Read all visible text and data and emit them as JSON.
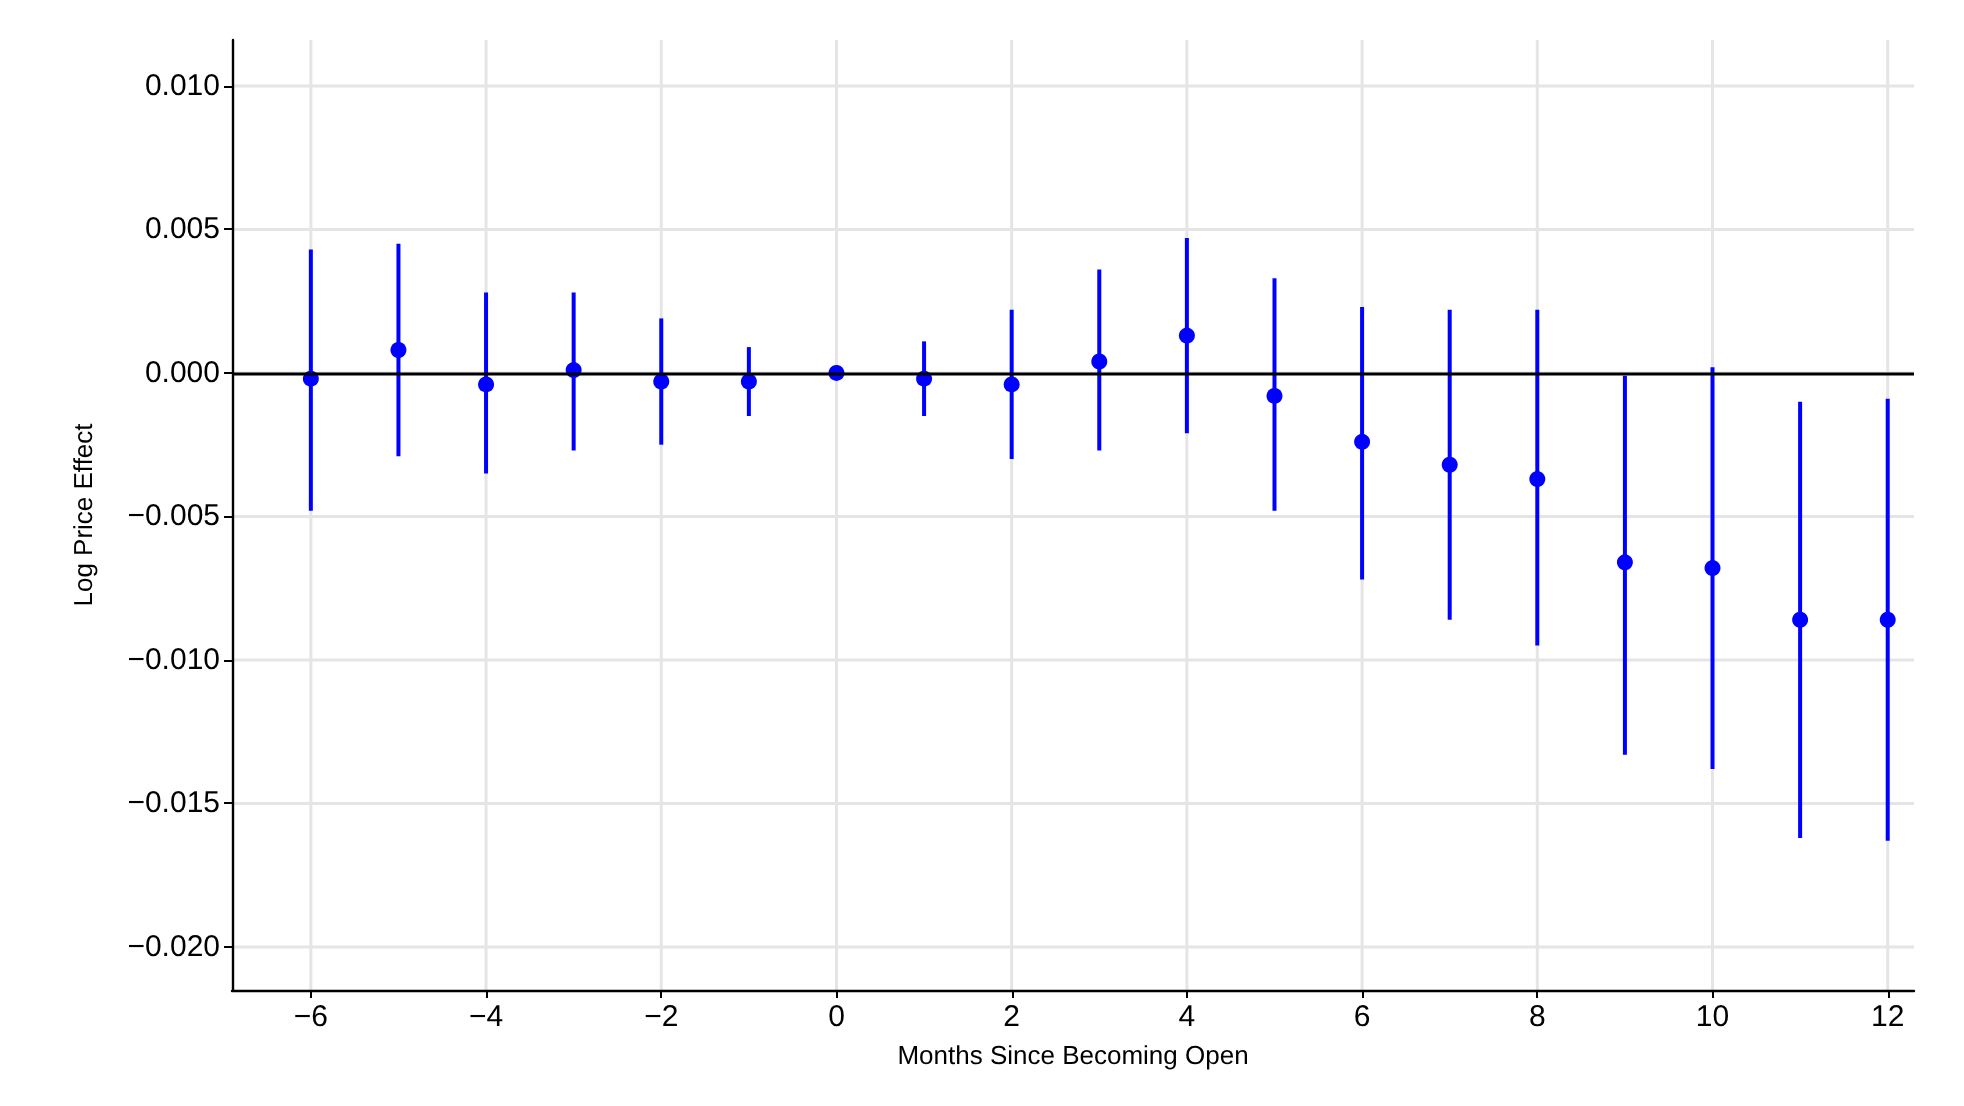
{
  "chart_data": {
    "type": "scatter",
    "xlabel": "Months Since Becoming Open",
    "ylabel": "Log Price Effect",
    "x": [
      -6,
      -5,
      -4,
      -3,
      -2,
      -1,
      0,
      1,
      2,
      3,
      4,
      5,
      6,
      7,
      8,
      9,
      10,
      11,
      12
    ],
    "series": [
      {
        "color": "#0000ff",
        "values": [
          -0.0002,
          0.0008,
          -0.0004,
          0.0001,
          -0.0003,
          -0.0003,
          0,
          -0.0002,
          -0.0004,
          0.0004,
          0.0013,
          -0.0008,
          -0.0024,
          -0.0032,
          -0.0037,
          -0.0066,
          -0.0068,
          -0.0086,
          -0.0086
        ],
        "errors": [
          [
            -0.0048,
            0.0043
          ],
          [
            -0.0029,
            0.0045
          ],
          [
            -0.0035,
            0.0028
          ],
          [
            -0.0027,
            0.0028
          ],
          [
            -0.0025,
            0.0019
          ],
          [
            -0.0015,
            0.0009
          ],
          null,
          [
            -0.0015,
            0.0011
          ],
          [
            -0.003,
            0.0022
          ],
          [
            -0.0027,
            0.0036
          ],
          [
            -0.0021,
            0.0047
          ],
          [
            -0.0048,
            0.0033
          ],
          [
            -0.0072,
            0.0023
          ],
          [
            -0.0086,
            0.0022
          ],
          [
            -0.0095,
            0.0022
          ],
          [
            -0.0133,
            -0.0001
          ],
          [
            -0.0138,
            0.0002
          ],
          [
            -0.0162,
            -0.001
          ],
          [
            -0.0163,
            -0.0009
          ]
        ]
      }
    ],
    "xlim": [
      -6.9,
      12.3
    ],
    "xticks": [
      {
        "value": -6,
        "label": "−6"
      },
      {
        "value": -4,
        "label": "−4"
      },
      {
        "value": -2,
        "label": "−2"
      },
      0,
      2,
      4,
      6,
      8,
      10,
      12
    ],
    "ylim": [
      -0.0215,
      0.0116
    ],
    "yticks": [
      {
        "value": -0.02,
        "label": "−0.020"
      },
      {
        "value": -0.015,
        "label": "−0.015"
      },
      {
        "value": -0.01,
        "label": "−0.010"
      },
      {
        "value": -0.005,
        "label": "−0.005"
      },
      {
        "value": 0,
        "label": "0.000"
      },
      {
        "value": 0.005,
        "label": "0.005"
      },
      {
        "value": 0.01,
        "label": "0.010"
      }
    ],
    "ref_lines": [
      {
        "axis": "y",
        "value": 0,
        "color": "#000000"
      }
    ],
    "grid": true,
    "marker": "circle"
  }
}
